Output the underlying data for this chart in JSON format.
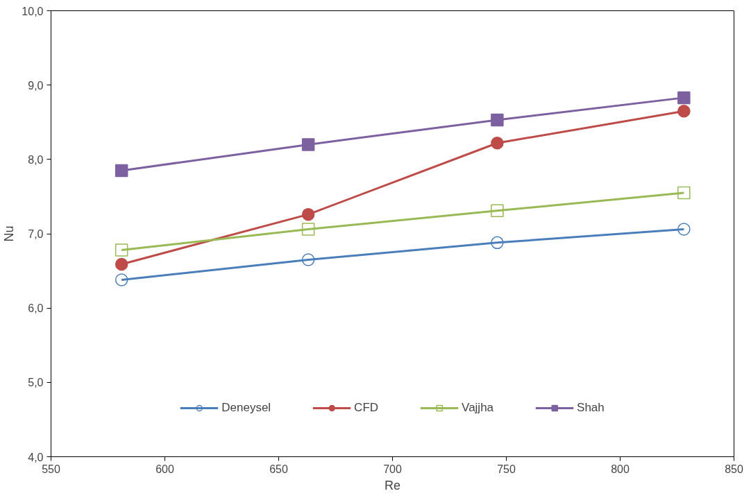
{
  "chart_data": {
    "type": "line",
    "xlabel": "Re",
    "ylabel": "Nu",
    "x": [
      581,
      663,
      746,
      828
    ],
    "series": [
      {
        "name": "Deneysel",
        "color": "#4a7ebb",
        "marker": "circle",
        "values": [
          6.38,
          6.65,
          6.88,
          7.06
        ]
      },
      {
        "name": "CFD",
        "color": "#be4b48",
        "marker": "circle",
        "values": [
          6.59,
          7.26,
          8.22,
          8.65
        ]
      },
      {
        "name": "Vajjha",
        "color": "#98b954",
        "marker": "square",
        "values": [
          6.78,
          7.06,
          7.31,
          7.55
        ]
      },
      {
        "name": "Shah",
        "color": "#7d60a0",
        "marker": "square",
        "values": [
          7.85,
          8.2,
          8.53,
          8.83
        ]
      }
    ],
    "xlim": [
      550,
      850
    ],
    "xticks": [
      550,
      600,
      650,
      700,
      750,
      800,
      850
    ],
    "ylim": [
      4.0,
      10.0
    ],
    "yticks": [
      {
        "value": 4,
        "label": "4,0"
      },
      {
        "value": 5,
        "label": "5,0"
      },
      {
        "value": 6,
        "label": "6,0"
      },
      {
        "value": 7,
        "label": "7,0"
      },
      {
        "value": 8,
        "label": "8,0"
      },
      {
        "value": 9,
        "label": "9,0"
      },
      {
        "value": 10,
        "label": "10,0"
      }
    ],
    "grid": false,
    "legend": "bottom",
    "line_style": "solid"
  }
}
